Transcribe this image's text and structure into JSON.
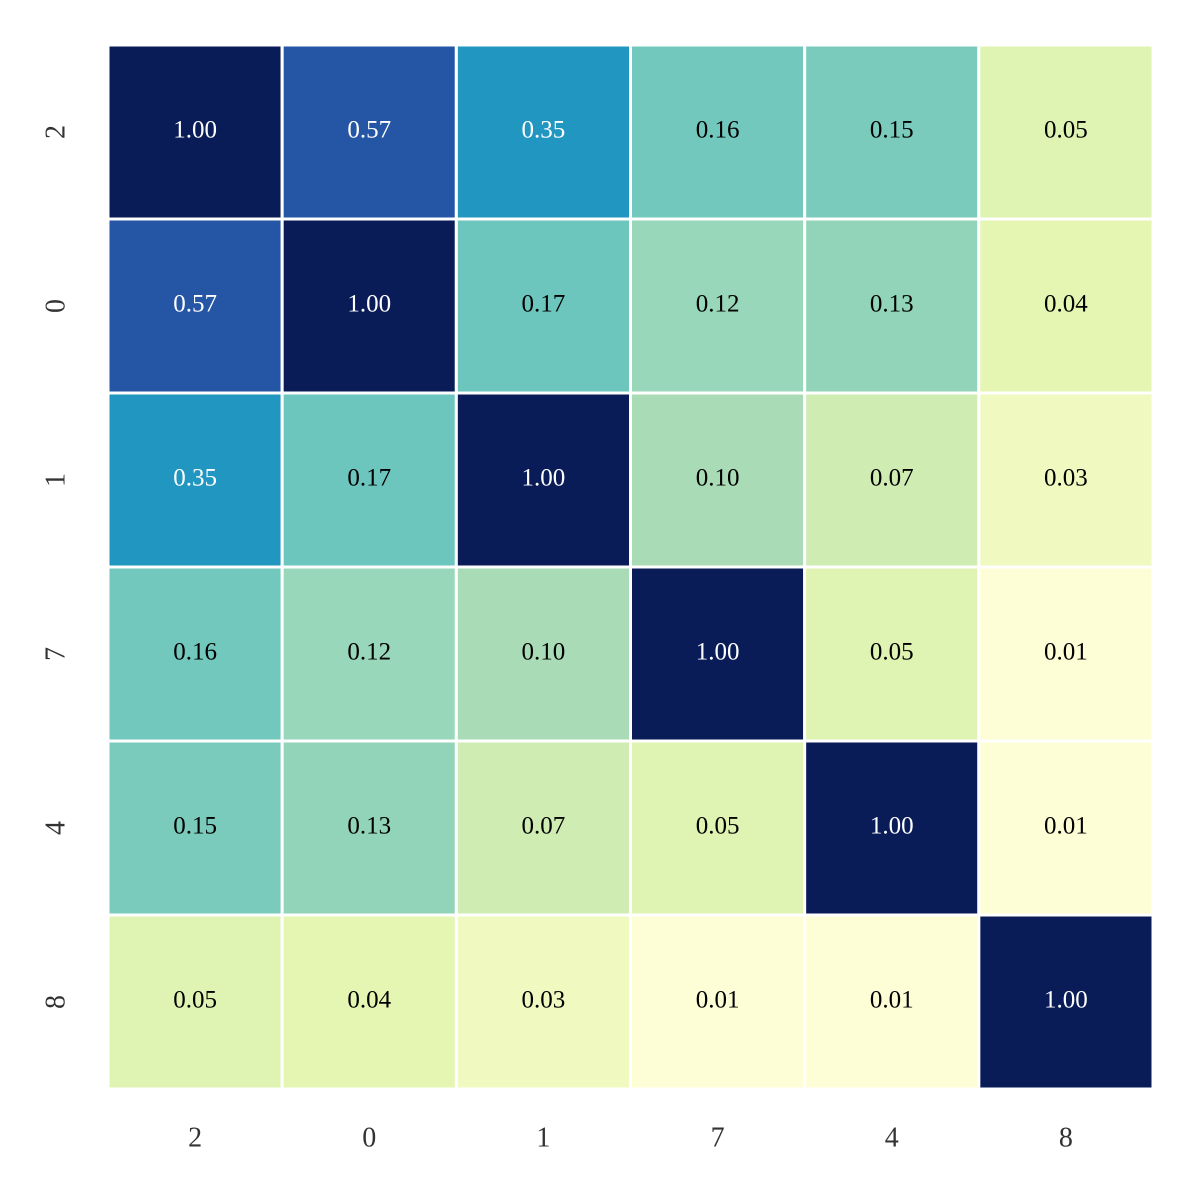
{
  "chart_data": {
    "type": "heatmap",
    "x_categories": [
      "2",
      "0",
      "1",
      "7",
      "4",
      "8"
    ],
    "y_categories": [
      "2",
      "0",
      "1",
      "7",
      "4",
      "8"
    ],
    "values": [
      [
        1.0,
        0.57,
        0.35,
        0.16,
        0.15,
        0.05
      ],
      [
        0.57,
        1.0,
        0.17,
        0.12,
        0.13,
        0.04
      ],
      [
        0.35,
        0.17,
        1.0,
        0.1,
        0.07,
        0.03
      ],
      [
        0.16,
        0.12,
        0.1,
        1.0,
        0.05,
        0.01
      ],
      [
        0.15,
        0.13,
        0.07,
        0.05,
        1.0,
        0.01
      ],
      [
        0.05,
        0.04,
        0.03,
        0.01,
        0.01,
        1.0
      ]
    ],
    "value_labels": [
      [
        "1.00",
        "0.57",
        "0.35",
        "0.16",
        "0.15",
        "0.05"
      ],
      [
        "0.57",
        "1.00",
        "0.17",
        "0.12",
        "0.13",
        "0.04"
      ],
      [
        "0.35",
        "0.17",
        "1.00",
        "0.10",
        "0.07",
        "0.03"
      ],
      [
        "0.16",
        "0.12",
        "0.10",
        "1.00",
        "0.05",
        "0.01"
      ],
      [
        "0.15",
        "0.13",
        "0.07",
        "0.05",
        "1.00",
        "0.01"
      ],
      [
        "0.05",
        "0.04",
        "0.03",
        "0.01",
        "0.01",
        "1.00"
      ]
    ],
    "colormap": "YlGnBu",
    "colors": [
      [
        "#0a1c58",
        "#2556a5",
        "#2196c1",
        "#72c8bd",
        "#7acbbb",
        "#dff3b2"
      ],
      [
        "#2556a5",
        "#0a1c58",
        "#6cc6be",
        "#98d7b9",
        "#91d4b9",
        "#e5f5b2"
      ],
      [
        "#2196c1",
        "#6cc6be",
        "#0a1c58",
        "#a9dcb6",
        "#cfecb3",
        "#f0f9bf"
      ],
      [
        "#72c8bd",
        "#98d7b9",
        "#a9dcb6",
        "#0a1c58",
        "#dff3b2",
        "#fdfed6"
      ],
      [
        "#7acbbb",
        "#91d4b9",
        "#cfecb3",
        "#dff3b2",
        "#0a1c58",
        "#fdfed6"
      ],
      [
        "#dff3b2",
        "#e5f5b2",
        "#f0f9bf",
        "#fdfed6",
        "#fdfed6",
        "#0a1c58"
      ]
    ]
  }
}
